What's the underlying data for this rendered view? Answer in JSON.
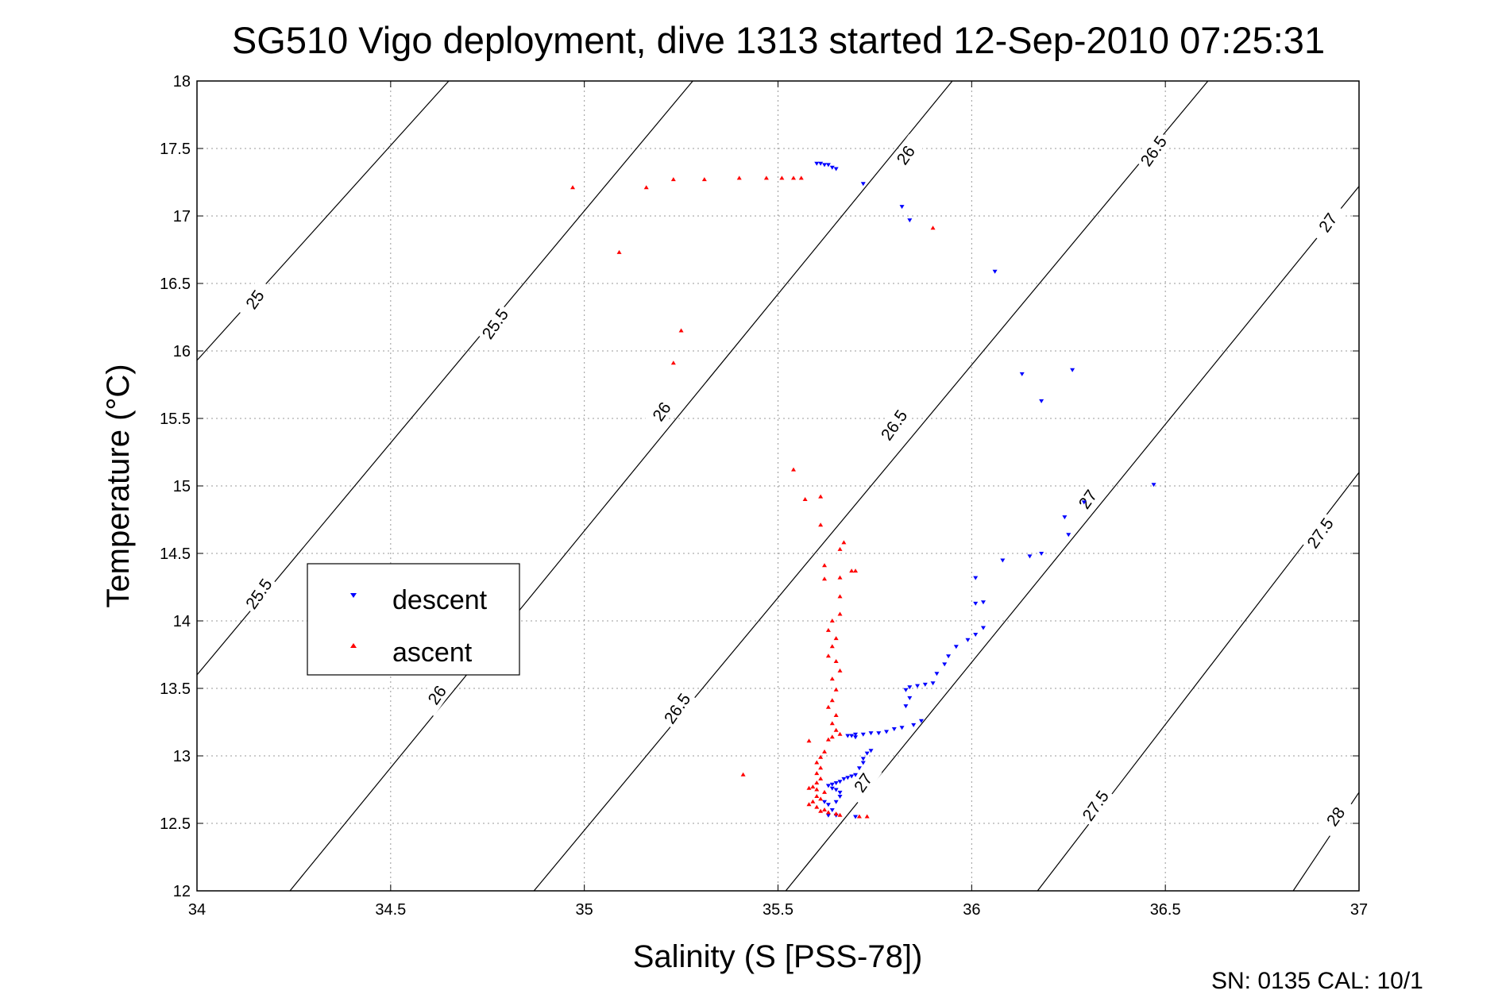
{
  "chart_data": {
    "type": "scatter",
    "title": "SG510 Vigo deployment, dive 1313 started 12-Sep-2010 07:25:31",
    "xlabel": "Salinity (S [PSS-78])",
    "ylabel": "Temperature (°C)",
    "xlim": [
      34,
      37
    ],
    "ylim": [
      12,
      18
    ],
    "xticks": [
      34,
      34.5,
      35,
      35.5,
      36,
      36.5,
      37
    ],
    "yticks": [
      12,
      12.5,
      13,
      13.5,
      14,
      14.5,
      15,
      15.5,
      16,
      16.5,
      17,
      17.5,
      18
    ],
    "grid": true,
    "legend_position": "left-middle",
    "footer_text": "SN: 0135  CAL: 10/1",
    "density_contours": [
      {
        "label": "25",
        "points": [
          [
            34,
            15.93
          ],
          [
            34.65,
            18
          ]
        ]
      },
      {
        "label": "25.5",
        "points": [
          [
            34,
            13.6
          ],
          [
            35.28,
            18
          ]
        ]
      },
      {
        "label": "26",
        "points": [
          [
            34.24,
            12
          ],
          [
            35.95,
            18
          ]
        ]
      },
      {
        "label": "26.5",
        "points": [
          [
            34.87,
            12
          ],
          [
            36.61,
            18
          ]
        ]
      },
      {
        "label": "27",
        "points": [
          [
            35.52,
            12
          ],
          [
            37,
            17.22
          ]
        ]
      },
      {
        "label": "27.5",
        "points": [
          [
            36.17,
            12
          ],
          [
            37,
            15.1
          ]
        ]
      },
      {
        "label": "28",
        "points": [
          [
            36.83,
            12
          ],
          [
            37,
            12.73
          ]
        ]
      }
    ],
    "contour_labels": [
      {
        "text": "25",
        "x": 34.15,
        "y": 16.38
      },
      {
        "text": "25.5",
        "x": 34.77,
        "y": 16.2
      },
      {
        "text": "26",
        "x": 35.83,
        "y": 17.45
      },
      {
        "text": "26.5",
        "x": 36.47,
        "y": 17.48
      },
      {
        "text": "27",
        "x": 36.92,
        "y": 16.95
      },
      {
        "text": "26",
        "x": 35.2,
        "y": 15.55
      },
      {
        "text": "26.5",
        "x": 35.8,
        "y": 15.45
      },
      {
        "text": "27",
        "x": 36.3,
        "y": 14.9
      },
      {
        "text": "27.5",
        "x": 36.9,
        "y": 14.65
      },
      {
        "text": "25.5",
        "x": 34.16,
        "y": 14.2
      },
      {
        "text": "26",
        "x": 34.62,
        "y": 13.45
      },
      {
        "text": "26.5",
        "x": 35.24,
        "y": 13.35
      },
      {
        "text": "27",
        "x": 35.72,
        "y": 12.8
      },
      {
        "text": "27.5",
        "x": 36.32,
        "y": 12.63
      },
      {
        "text": "28",
        "x": 36.94,
        "y": 12.55
      }
    ],
    "series": [
      {
        "name": "descent",
        "color": "#0000ff",
        "marker": "triangle-down",
        "points": [
          [
            35.6,
            17.39
          ],
          [
            35.61,
            17.39
          ],
          [
            35.62,
            17.38
          ],
          [
            35.63,
            17.38
          ],
          [
            35.64,
            17.36
          ],
          [
            35.65,
            17.35
          ],
          [
            35.72,
            17.24
          ],
          [
            35.82,
            17.07
          ],
          [
            35.84,
            16.97
          ],
          [
            36.06,
            16.59
          ],
          [
            36.13,
            15.83
          ],
          [
            36.18,
            15.63
          ],
          [
            36.26,
            15.86
          ],
          [
            36.47,
            15.01
          ],
          [
            36.29,
            14.88
          ],
          [
            36.24,
            14.77
          ],
          [
            36.25,
            14.64
          ],
          [
            36.18,
            14.5
          ],
          [
            36.15,
            14.48
          ],
          [
            36.08,
            14.45
          ],
          [
            36.01,
            14.32
          ],
          [
            36.03,
            14.14
          ],
          [
            36.01,
            14.13
          ],
          [
            36.03,
            13.95
          ],
          [
            36.01,
            13.9
          ],
          [
            35.99,
            13.86
          ],
          [
            35.96,
            13.81
          ],
          [
            35.94,
            13.74
          ],
          [
            35.93,
            13.68
          ],
          [
            35.91,
            13.61
          ],
          [
            35.9,
            13.54
          ],
          [
            35.88,
            13.53
          ],
          [
            35.86,
            13.52
          ],
          [
            35.84,
            13.51
          ],
          [
            35.83,
            13.49
          ],
          [
            35.84,
            13.43
          ],
          [
            35.83,
            13.37
          ],
          [
            35.87,
            13.26
          ],
          [
            35.85,
            13.23
          ],
          [
            35.82,
            13.21
          ],
          [
            35.8,
            13.2
          ],
          [
            35.78,
            13.18
          ],
          [
            35.76,
            13.17
          ],
          [
            35.74,
            13.17
          ],
          [
            35.72,
            13.16
          ],
          [
            35.7,
            13.16
          ],
          [
            35.69,
            13.15
          ],
          [
            35.7,
            13.14
          ],
          [
            35.68,
            13.15
          ],
          [
            35.74,
            13.04
          ],
          [
            35.73,
            13.02
          ],
          [
            35.72,
            12.98
          ],
          [
            35.72,
            12.95
          ],
          [
            35.71,
            12.91
          ],
          [
            35.7,
            12.86
          ],
          [
            35.69,
            12.85
          ],
          [
            35.68,
            12.84
          ],
          [
            35.67,
            12.83
          ],
          [
            35.66,
            12.81
          ],
          [
            35.65,
            12.8
          ],
          [
            35.64,
            12.79
          ],
          [
            35.63,
            12.78
          ],
          [
            35.64,
            12.76
          ],
          [
            35.65,
            12.75
          ],
          [
            35.66,
            12.73
          ],
          [
            35.62,
            12.66
          ],
          [
            35.63,
            12.64
          ],
          [
            35.65,
            12.66
          ],
          [
            35.66,
            12.7
          ],
          [
            35.64,
            12.6
          ],
          [
            35.63,
            12.56
          ],
          [
            35.65,
            12.56
          ],
          [
            35.7,
            12.55
          ]
        ]
      },
      {
        "name": "ascent",
        "color": "#ff0000",
        "marker": "triangle-up",
        "points": [
          [
            34.97,
            17.21
          ],
          [
            35.16,
            17.21
          ],
          [
            35.23,
            17.27
          ],
          [
            35.31,
            17.27
          ],
          [
            35.4,
            17.28
          ],
          [
            35.47,
            17.28
          ],
          [
            35.51,
            17.28
          ],
          [
            35.54,
            17.28
          ],
          [
            35.56,
            17.28
          ],
          [
            35.9,
            16.91
          ],
          [
            35.09,
            16.73
          ],
          [
            35.25,
            16.15
          ],
          [
            35.23,
            15.91
          ],
          [
            35.54,
            15.12
          ],
          [
            35.57,
            14.9
          ],
          [
            35.61,
            14.92
          ],
          [
            35.61,
            14.71
          ],
          [
            35.67,
            14.58
          ],
          [
            35.66,
            14.53
          ],
          [
            35.62,
            14.41
          ],
          [
            35.69,
            14.37
          ],
          [
            35.7,
            14.37
          ],
          [
            35.66,
            14.32
          ],
          [
            35.62,
            14.31
          ],
          [
            35.66,
            14.18
          ],
          [
            35.66,
            14.05
          ],
          [
            35.64,
            14.0
          ],
          [
            35.63,
            13.93
          ],
          [
            35.65,
            13.87
          ],
          [
            35.64,
            13.81
          ],
          [
            35.63,
            13.74
          ],
          [
            35.65,
            13.7
          ],
          [
            35.66,
            13.63
          ],
          [
            35.64,
            13.57
          ],
          [
            35.65,
            13.49
          ],
          [
            35.64,
            13.41
          ],
          [
            35.63,
            13.36
          ],
          [
            35.65,
            13.3
          ],
          [
            35.64,
            13.24
          ],
          [
            35.65,
            13.19
          ],
          [
            35.66,
            13.16
          ],
          [
            35.64,
            13.14
          ],
          [
            35.63,
            13.12
          ],
          [
            35.58,
            13.11
          ],
          [
            35.62,
            13.03
          ],
          [
            35.61,
            12.99
          ],
          [
            35.6,
            12.95
          ],
          [
            35.61,
            12.91
          ],
          [
            35.6,
            12.87
          ],
          [
            35.61,
            12.83
          ],
          [
            35.6,
            12.8
          ],
          [
            35.59,
            12.77
          ],
          [
            35.58,
            12.76
          ],
          [
            35.6,
            12.75
          ],
          [
            35.62,
            12.73
          ],
          [
            35.6,
            12.7
          ],
          [
            35.61,
            12.68
          ],
          [
            35.59,
            12.66
          ],
          [
            35.58,
            12.64
          ],
          [
            35.6,
            12.62
          ],
          [
            35.62,
            12.6
          ],
          [
            35.61,
            12.59
          ],
          [
            35.63,
            12.58
          ],
          [
            35.65,
            12.57
          ],
          [
            35.66,
            12.56
          ],
          [
            35.71,
            12.55
          ],
          [
            35.73,
            12.55
          ],
          [
            35.41,
            12.86
          ]
        ]
      }
    ]
  }
}
